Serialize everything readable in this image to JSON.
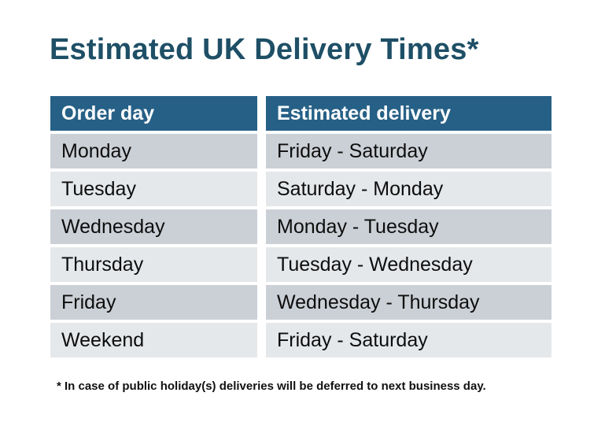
{
  "title": {
    "text": "Estimated UK Delivery Times*",
    "color": "#1E4F66"
  },
  "table": {
    "headers": [
      "Order day",
      "Estimated delivery"
    ],
    "rows": [
      [
        "Monday",
        "Friday - Saturday"
      ],
      [
        "Tuesday",
        "Saturday - Monday"
      ],
      [
        "Wednesday",
        "Monday - Tuesday"
      ],
      [
        "Thursday",
        "Tuesday - Wednesday"
      ],
      [
        "Friday",
        "Wednesday - Thursday"
      ],
      [
        "Weekend",
        "Friday - Saturday"
      ]
    ],
    "colors": {
      "header_background": "#266086",
      "header_text": "#FFFFFF",
      "row_odd_background": "#CBD0D6",
      "row_even_background": "#E5E8EB",
      "cell_text": "#0D0D0D"
    }
  },
  "footnote": {
    "text": "* In case of public holiday(s) deliveries will be deferred to next business day."
  }
}
